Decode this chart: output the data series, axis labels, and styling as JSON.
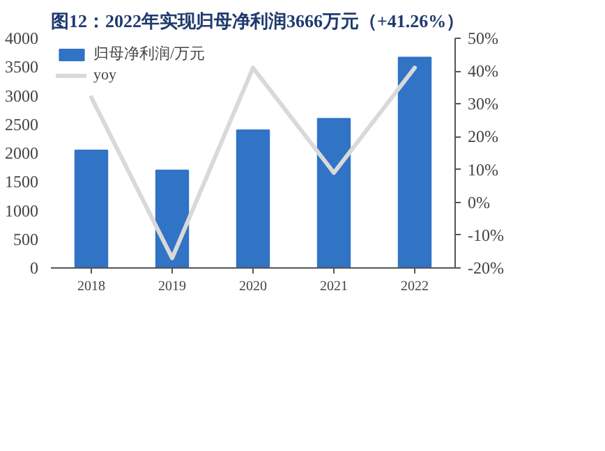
{
  "chart_data": {
    "type": "bar",
    "title": "图12：2022年实现归母净利润3666万元（+41.26%）",
    "categories": [
      "2018",
      "2019",
      "2020",
      "2021",
      "2022"
    ],
    "series": [
      {
        "name": "归母净利润/万元",
        "color": "#3173c5",
        "values": [
          2050,
          1700,
          2400,
          2600,
          3666
        ]
      },
      {
        "name": "yoy",
        "type": "line",
        "axis": "y2",
        "color": "#d9d9d9",
        "values": [
          32,
          -17,
          41,
          9,
          41
        ]
      }
    ],
    "ylim": [
      0,
      4000
    ],
    "yticks": [
      0,
      500,
      1000,
      1500,
      2000,
      2500,
      3000,
      3500,
      4000
    ],
    "y2lim": [
      -20,
      50
    ],
    "y2ticks": [
      {
        "value": -20,
        "label": "-20%"
      },
      {
        "value": -10,
        "label": "-10%"
      },
      {
        "value": 0,
        "label": "0%"
      },
      {
        "value": 10,
        "label": "10%"
      },
      {
        "value": 20,
        "label": "20%"
      },
      {
        "value": 30,
        "label": "30%"
      },
      {
        "value": 40,
        "label": "40%"
      },
      {
        "value": 50,
        "label": "50%"
      }
    ],
    "grid": false,
    "legend": "top left"
  }
}
